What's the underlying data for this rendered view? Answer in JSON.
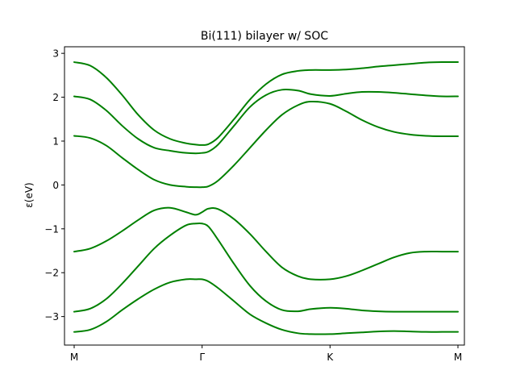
{
  "chart_data": {
    "type": "line",
    "title": "Bi(111) bilayer w/ SOC",
    "xlabel": "",
    "ylabel": "ε(eV)",
    "xlim": [
      0,
      3
    ],
    "ylim": [
      -3.65,
      3.15
    ],
    "x_ticks": [
      {
        "label": "M",
        "x": 0
      },
      {
        "label": "Γ",
        "x": 1
      },
      {
        "label": "K",
        "x": 2
      },
      {
        "label": "M",
        "x": 3
      }
    ],
    "y_ticks": [
      {
        "label": "3",
        "value": 3
      },
      {
        "label": "2",
        "value": 2
      },
      {
        "label": "1",
        "value": 1
      },
      {
        "label": "0",
        "value": 0
      },
      {
        "label": "−1",
        "value": -1
      },
      {
        "label": "−2",
        "value": -2
      },
      {
        "label": "−3",
        "value": -3
      }
    ],
    "grid": false,
    "color": "#008000",
    "x": [
      0,
      0.125,
      0.25,
      0.375,
      0.5,
      0.625,
      0.75,
      0.875,
      0.95,
      1.0,
      1.05,
      1.125,
      1.25,
      1.375,
      1.5,
      1.625,
      1.75,
      1.85,
      2.0,
      2.125,
      2.25,
      2.375,
      2.5,
      2.625,
      2.75,
      2.875,
      3.0
    ],
    "series": [
      {
        "values": [
          2.8,
          2.72,
          2.45,
          2.05,
          1.6,
          1.25,
          1.05,
          0.95,
          0.92,
          0.91,
          0.93,
          1.08,
          1.5,
          1.95,
          2.3,
          2.52,
          2.6,
          2.62,
          2.62,
          2.63,
          2.66,
          2.7,
          2.73,
          2.76,
          2.79,
          2.8,
          2.8
        ]
      },
      {
        "values": [
          2.02,
          1.95,
          1.7,
          1.35,
          1.05,
          0.85,
          0.78,
          0.73,
          0.72,
          0.73,
          0.76,
          0.92,
          1.35,
          1.78,
          2.05,
          2.17,
          2.15,
          2.07,
          2.03,
          2.08,
          2.12,
          2.12,
          2.1,
          2.07,
          2.04,
          2.02,
          2.02
        ]
      },
      {
        "values": [
          1.12,
          1.07,
          0.9,
          0.62,
          0.35,
          0.12,
          0.0,
          -0.04,
          -0.05,
          -0.05,
          -0.03,
          0.1,
          0.45,
          0.85,
          1.25,
          1.6,
          1.82,
          1.9,
          1.85,
          1.68,
          1.48,
          1.32,
          1.21,
          1.15,
          1.12,
          1.11,
          1.11
        ]
      },
      {
        "values": [
          -1.52,
          -1.45,
          -1.28,
          -1.05,
          -0.8,
          -0.58,
          -0.52,
          -0.62,
          -0.68,
          -0.62,
          -0.54,
          -0.55,
          -0.78,
          -1.12,
          -1.52,
          -1.88,
          -2.08,
          -2.15,
          -2.15,
          -2.08,
          -1.95,
          -1.8,
          -1.65,
          -1.55,
          -1.52,
          -1.52,
          -1.52
        ]
      },
      {
        "values": [
          -2.89,
          -2.82,
          -2.6,
          -2.25,
          -1.85,
          -1.45,
          -1.15,
          -0.92,
          -0.88,
          -0.88,
          -0.95,
          -1.25,
          -1.8,
          -2.3,
          -2.65,
          -2.85,
          -2.88,
          -2.83,
          -2.8,
          -2.82,
          -2.86,
          -2.88,
          -2.89,
          -2.89,
          -2.89,
          -2.89,
          -2.89
        ]
      },
      {
        "values": [
          -3.35,
          -3.3,
          -3.12,
          -2.85,
          -2.6,
          -2.38,
          -2.22,
          -2.15,
          -2.15,
          -2.15,
          -2.2,
          -2.35,
          -2.65,
          -2.95,
          -3.15,
          -3.3,
          -3.38,
          -3.4,
          -3.4,
          -3.38,
          -3.36,
          -3.34,
          -3.33,
          -3.34,
          -3.35,
          -3.35,
          -3.35
        ]
      }
    ]
  }
}
